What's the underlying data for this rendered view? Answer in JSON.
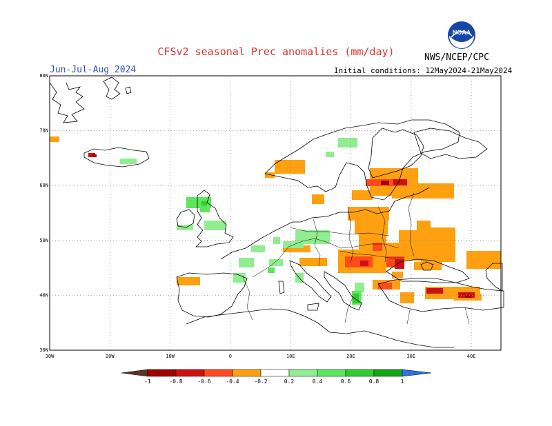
{
  "header": {
    "title": "CFSv2 seasonal Prec anomalies (mm/day)",
    "season": "Jun-Jul-Aug 2024",
    "initial_conditions": "Initial conditions: 12May2024-21May2024",
    "agency": "NWS/NCEP/CPC",
    "logo_text": "NOAA",
    "logo_icon": "noaa-logo-icon"
  },
  "map": {
    "lat_labels": [
      "80N",
      "70N",
      "60N",
      "50N",
      "40N",
      "30N"
    ],
    "lon_labels": [
      "30W",
      "20W",
      "10W",
      "0",
      "10E",
      "20E",
      "30E",
      "40E"
    ],
    "grid": true
  },
  "legend": {
    "labels": [
      "-1",
      "-0.8",
      "-0.6",
      "-0.4",
      "-0.2",
      "0.2",
      "0.4",
      "0.6",
      "0.8",
      "1"
    ],
    "colors": {
      "lt_minus1": "#5a3525",
      "m1_m08": "#a00000",
      "m08_m06": "#d01010",
      "m06_m04": "#ff4a1a",
      "m04_m02": "#ffa010",
      "neutral": "#ffffff",
      "p02_p04": "#90ee90",
      "p04_p06": "#5ce65c",
      "p06_p08": "#2ecc2e",
      "p08_p1": "#13a813",
      "gt_1": "#3070e0"
    }
  }
}
